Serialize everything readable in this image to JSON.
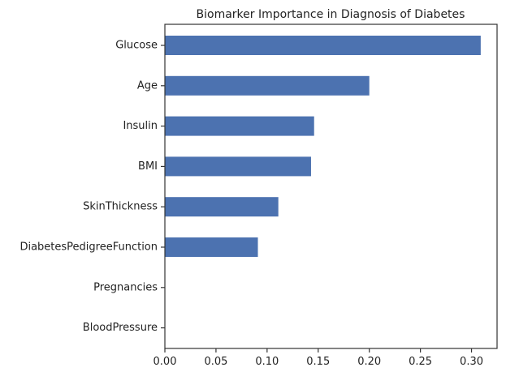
{
  "chart_data": {
    "type": "bar",
    "orientation": "horizontal",
    "title": "Biomarker Importance in Diagnosis of Diabetes",
    "xlabel": "",
    "ylabel": "",
    "categories": [
      "Glucose",
      "Age",
      "Insulin",
      "BMI",
      "SkinThickness",
      "DiabetesPedigreeFunction",
      "Pregnancies",
      "BloodPressure"
    ],
    "values": [
      0.309,
      0.2,
      0.146,
      0.143,
      0.111,
      0.091,
      0.0,
      0.0
    ],
    "xlim": [
      0.0,
      0.325
    ],
    "xticks": [
      0.0,
      0.05,
      0.1,
      0.15,
      0.2,
      0.25,
      0.3
    ],
    "xtick_labels": [
      "0.00",
      "0.05",
      "0.10",
      "0.15",
      "0.20",
      "0.25",
      "0.30"
    ],
    "bar_color": "#4c72b0",
    "grid": false,
    "legend": "none"
  }
}
